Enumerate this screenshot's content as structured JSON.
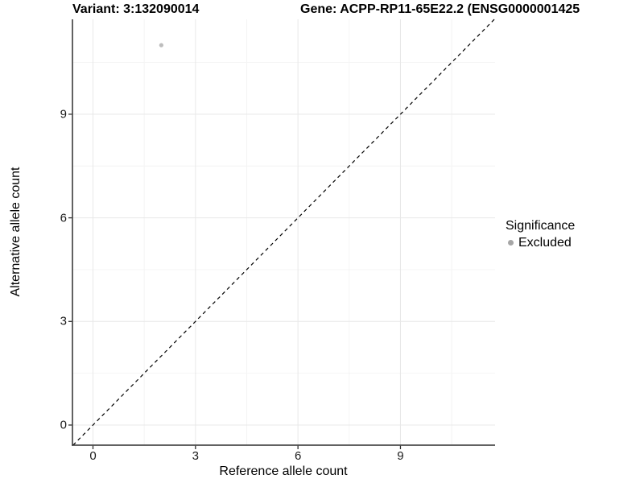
{
  "chart_data": {
    "type": "scatter",
    "title_left": "Variant: 3:132090014",
    "title_right": "Gene: ACPP-RP11-65E22.2 (ENSG0000001425",
    "xlabel": "Reference allele count",
    "ylabel": "Alternative allele count",
    "x_ticks": [
      0,
      3,
      6,
      9
    ],
    "y_ticks": [
      0,
      3,
      6,
      9
    ],
    "tick_step": 3,
    "xlim": [
      -0.6,
      11.8
    ],
    "ylim": [
      -0.6,
      11.8
    ],
    "grid": "major and minor gridlines, light gray on white",
    "points": [
      {
        "x": 2,
        "y": 11,
        "series": "Excluded"
      }
    ],
    "reference_line": {
      "type": "identity y=x",
      "style": "dashed"
    },
    "legend": {
      "title": "Significance",
      "position": "right",
      "entries": [
        {
          "label": "Excluded",
          "color": "#a6a6a6"
        }
      ]
    }
  },
  "colors": {
    "background": "#ffffff",
    "grid_major": "#e8e8e8",
    "grid_minor": "#f4f4f4",
    "axis_line": "#2f2f2f",
    "tick_mark": "#2f2f2f",
    "tick_label": "#1a1a1a",
    "point_fill": "#bdbdbd",
    "legend_dot": "#a6a6a6",
    "identity_line": "#000000"
  }
}
